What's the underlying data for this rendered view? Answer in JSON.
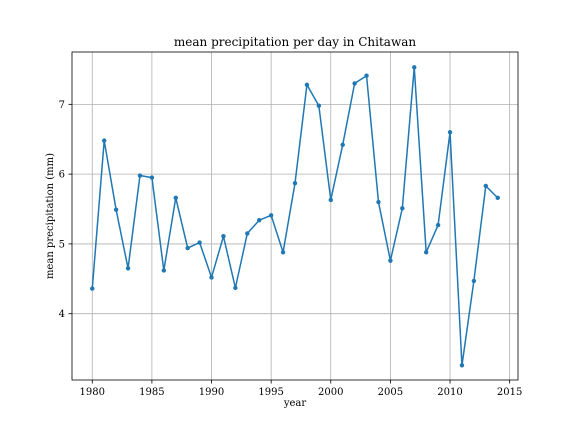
{
  "chart_data": {
    "type": "line",
    "title": "mean precipitation per day in Chitawan",
    "xlabel": "year",
    "ylabel": "mean precipitation (mm)",
    "xlim": [
      1978.3,
      2015.7
    ],
    "ylim": [
      3.05,
      7.75
    ],
    "xticks": [
      1980,
      1985,
      1990,
      1995,
      2000,
      2005,
      2010,
      2015
    ],
    "yticks": [
      4,
      5,
      6,
      7
    ],
    "grid": true,
    "legend": "none",
    "series": [
      {
        "color": "#1f77b4",
        "marker": "dot",
        "x": [
          1980,
          1981,
          1982,
          1983,
          1984,
          1985,
          1986,
          1987,
          1988,
          1989,
          1990,
          1991,
          1992,
          1993,
          1994,
          1995,
          1996,
          1997,
          1998,
          1999,
          2000,
          2001,
          2002,
          2003,
          2004,
          2005,
          2006,
          2007,
          2008,
          2009,
          2010,
          2011,
          2012,
          2013,
          2014
        ],
        "y": [
          4.36,
          6.48,
          5.49,
          4.65,
          5.98,
          5.95,
          4.62,
          5.66,
          4.94,
          5.02,
          4.52,
          5.11,
          4.37,
          5.15,
          5.34,
          5.41,
          4.88,
          5.87,
          7.28,
          6.98,
          5.63,
          6.42,
          7.3,
          7.41,
          5.6,
          4.76,
          5.51,
          7.53,
          4.88,
          5.27,
          6.6,
          3.26,
          4.47,
          5.83,
          5.66
        ]
      }
    ]
  }
}
